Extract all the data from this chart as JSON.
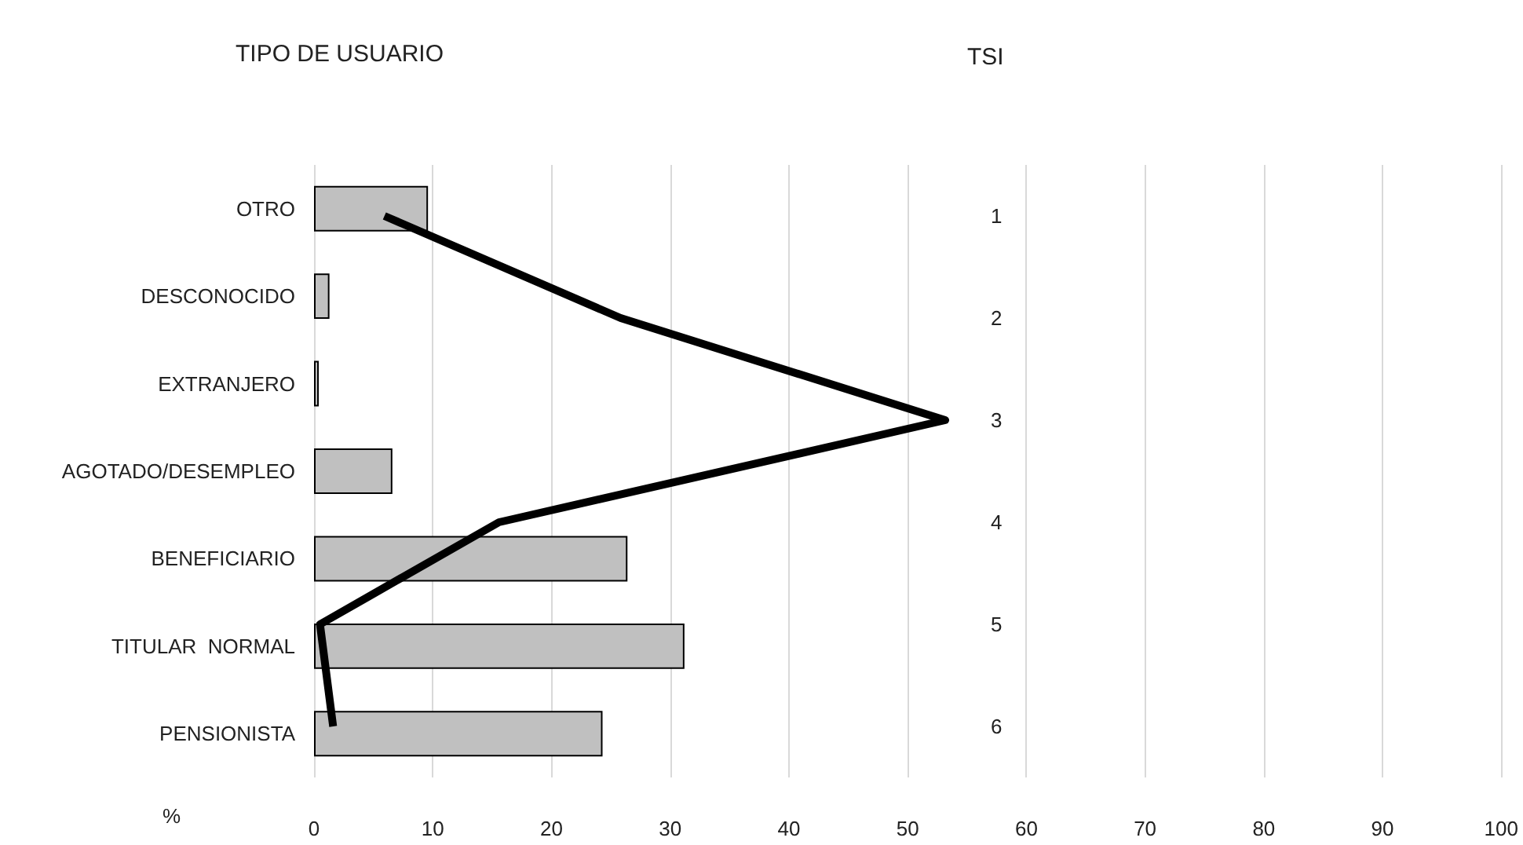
{
  "chart_data": [
    {
      "type": "bar",
      "orientation": "horizontal",
      "ylabel": "TIPO DE USUARIO",
      "xlabel": "%",
      "categories": [
        "OTRO",
        "DESCONOCIDO",
        "EXTRANJERO",
        "AGOTADO/DESEMPLEO",
        "BENEFICIARIO",
        "TITULAR  NORMAL",
        "PENSIONISTA"
      ],
      "series": [
        {
          "color": "#c0c0c0",
          "values": [
            9.6,
            1.3,
            0.4,
            6.6,
            26.4,
            31.2,
            24.3
          ]
        }
      ],
      "xlim": [
        0,
        100
      ],
      "xticks": [
        0,
        10,
        20,
        30,
        40,
        50,
        60,
        70,
        80,
        90,
        100
      ],
      "grid": "x"
    },
    {
      "type": "line",
      "orientation": "horizontal",
      "ylabel": "TSI",
      "categories": [
        "1",
        "2",
        "3",
        "4",
        "5",
        "6"
      ],
      "series": [
        {
          "color": "#000000",
          "values": [
            5.9,
            25.7,
            52.9,
            15.5,
            0.5,
            1.6
          ]
        }
      ],
      "xlim": [
        0,
        100
      ],
      "tick_labels": "y",
      "marker": "none",
      "line_style": "solid"
    }
  ]
}
